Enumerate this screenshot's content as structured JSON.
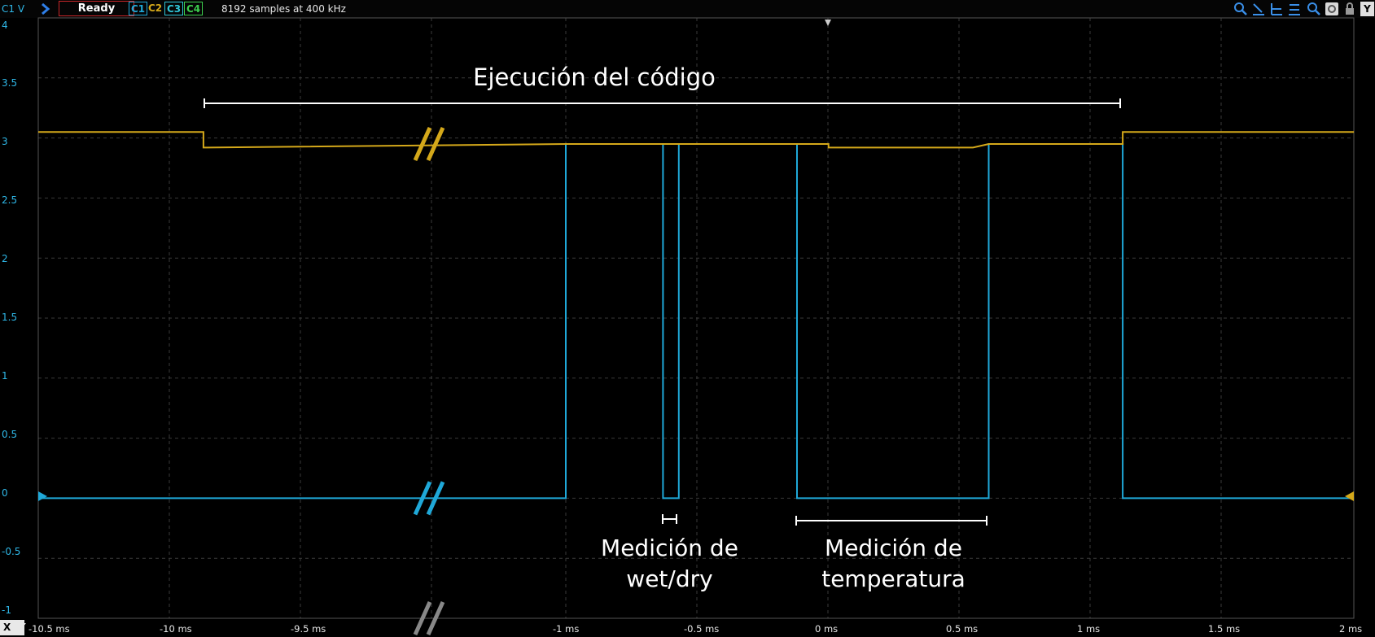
{
  "toolbar": {
    "channel_label": "C1 V",
    "status": "Ready",
    "channels": [
      "C1",
      "C2",
      "C3",
      "C4"
    ],
    "samples_info": "8192 samples at 400 kHz",
    "y_button": "Y"
  },
  "axes": {
    "y_ticks": [
      "4",
      "3.5",
      "3",
      "2.5",
      "2",
      "1.5",
      "1",
      "0.5",
      "0",
      "-0.5",
      "-1"
    ],
    "x_ticks": [
      "-10.5 ms",
      "-10 ms",
      "-9.5 ms",
      "-1 ms",
      "-0.5 ms",
      "0 ms",
      "0.5 ms",
      "1 ms",
      "1.5 ms",
      "2 ms"
    ],
    "x_axis_button": "X"
  },
  "annotations": {
    "execution": "Ejecución del código",
    "wetdry_line1": "Medición de",
    "wetdry_line2": "wet/dry",
    "temp_line1": "Medición de",
    "temp_line2": "temperatura"
  },
  "colors": {
    "c1": "#1fa8d8",
    "c2": "#d4a81a",
    "c3": "#2fc6d8",
    "c4": "#3ccf4e",
    "grid": "#3a3a3a",
    "ready_border": "#c8262a"
  },
  "chart_data": {
    "type": "line",
    "ylim": [
      -1,
      4
    ],
    "series": [
      {
        "name": "C1",
        "points_ms_v": [
          [
            -10.5,
            0
          ],
          [
            -1.0,
            0
          ],
          [
            -1.0,
            2.95
          ],
          [
            -0.63,
            2.95
          ],
          [
            -0.63,
            0
          ],
          [
            -0.57,
            0
          ],
          [
            -0.57,
            2.95
          ],
          [
            -0.12,
            2.95
          ],
          [
            -0.12,
            0
          ],
          [
            0.61,
            0
          ],
          [
            0.61,
            2.95
          ],
          [
            1.12,
            2.95
          ],
          [
            1.12,
            0
          ],
          [
            2.0,
            0
          ]
        ]
      },
      {
        "name": "C2",
        "points_ms_v": [
          [
            -10.5,
            3.05
          ],
          [
            -9.87,
            3.05
          ],
          [
            -9.87,
            2.92
          ],
          [
            -1.0,
            2.95
          ],
          [
            0.0,
            2.95
          ],
          [
            0.0,
            2.92
          ],
          [
            0.55,
            2.92
          ],
          [
            0.61,
            2.95
          ],
          [
            1.12,
            2.95
          ],
          [
            1.12,
            3.05
          ],
          [
            2.0,
            3.05
          ]
        ]
      }
    ]
  }
}
